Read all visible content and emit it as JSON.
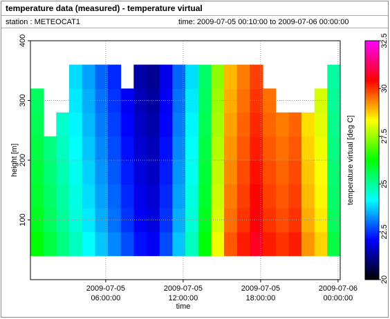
{
  "chart_data": {
    "type": "heatmap",
    "title": "temperature data (measured) - temperature virtual",
    "station": "station : METEOCAT1",
    "time_range": "time: 2009-07-05 00:10:00 to 2009-07-06 00:00:00",
    "xlabel": "time",
    "ylabel": "height [m]",
    "xlim": [
      "2009-07-05 00:10:00",
      "2009-07-06 00:10:00"
    ],
    "xticks": [
      "2009-07-05 06:00:00",
      "2009-07-05 12:00:00",
      "2009-07-05 18:00:00",
      "2009-07-06 00:00:00"
    ],
    "ylim": [
      0,
      400
    ],
    "yticks": [
      100,
      200,
      300,
      400
    ],
    "grid": true,
    "x_bins": [
      "2009-07-05 00:10:00",
      "2009-07-05 01:10:00",
      "2009-07-05 02:10:00",
      "2009-07-05 03:10:00",
      "2009-07-05 04:10:00",
      "2009-07-05 05:10:00",
      "2009-07-05 06:10:00",
      "2009-07-05 07:10:00",
      "2009-07-05 08:10:00",
      "2009-07-05 09:10:00",
      "2009-07-05 10:10:00",
      "2009-07-05 11:10:00",
      "2009-07-05 12:10:00",
      "2009-07-05 13:10:00",
      "2009-07-05 14:10:00",
      "2009-07-05 15:10:00",
      "2009-07-05 16:10:00",
      "2009-07-05 17:10:00",
      "2009-07-05 18:10:00",
      "2009-07-05 19:10:00",
      "2009-07-05 20:10:00",
      "2009-07-05 21:10:00",
      "2009-07-05 22:10:00",
      "2009-07-05 23:10:00",
      "2009-07-06 00:10:00"
    ],
    "y_bins": [
      40,
      80,
      120,
      160,
      200,
      240,
      280,
      320,
      360
    ],
    "values": [
      [
        26.2,
        25.7,
        25.2,
        24.7,
        24.2,
        23.7,
        23.2,
        22.7,
        22.2,
        22.0,
        22.7,
        23.7,
        24.7,
        26.2,
        28.2,
        29.7,
        30.2,
        30.7,
        30.2,
        30.0,
        30.2,
        29.2,
        28.7,
        25.7
      ],
      [
        26.0,
        25.5,
        25.0,
        24.5,
        24.0,
        23.5,
        23.0,
        22.5,
        22.0,
        21.8,
        22.5,
        23.5,
        24.5,
        26.0,
        28.0,
        29.5,
        30.0,
        30.5,
        30.0,
        29.8,
        30.0,
        29.0,
        28.5,
        25.5
      ],
      [
        25.9,
        25.4,
        24.9,
        24.4,
        23.9,
        23.4,
        22.9,
        22.4,
        21.9,
        21.7,
        22.4,
        23.4,
        24.4,
        25.9,
        27.9,
        29.4,
        29.9,
        30.4,
        29.9,
        29.7,
        29.9,
        28.9,
        28.4,
        25.4
      ],
      [
        25.8,
        25.3,
        24.8,
        24.3,
        23.8,
        23.3,
        22.8,
        22.3,
        21.8,
        21.6,
        22.3,
        23.3,
        24.3,
        25.8,
        27.8,
        29.3,
        29.8,
        30.3,
        29.8,
        29.6,
        29.8,
        28.8,
        28.3,
        25.3
      ],
      [
        25.7,
        25.2,
        24.7,
        24.2,
        23.7,
        23.2,
        22.7,
        22.2,
        21.7,
        21.5,
        22.2,
        23.2,
        24.2,
        25.7,
        27.7,
        29.2,
        29.7,
        30.2,
        29.7,
        29.5,
        29.7,
        28.7,
        28.2,
        25.2
      ],
      [
        25.6,
        null,
        24.6,
        24.1,
        23.6,
        23.1,
        22.6,
        22.1,
        21.6,
        21.4,
        22.1,
        23.1,
        24.1,
        25.6,
        27.6,
        29.1,
        29.6,
        30.1,
        29.6,
        29.4,
        29.6,
        28.6,
        28.1,
        25.1
      ],
      [
        25.5,
        null,
        null,
        24.0,
        23.5,
        23.0,
        22.5,
        22.0,
        21.5,
        21.3,
        22.0,
        23.0,
        24.0,
        25.5,
        27.5,
        29.0,
        29.5,
        30.0,
        29.5,
        null,
        null,
        null,
        28.0,
        25.0
      ],
      [
        null,
        null,
        null,
        23.9,
        23.4,
        22.9,
        22.4,
        null,
        21.4,
        21.2,
        21.9,
        22.9,
        23.9,
        25.4,
        27.4,
        28.9,
        29.4,
        29.9,
        null,
        null,
        null,
        null,
        null,
        24.9
      ]
    ],
    "colormap": [
      "#000000",
      "#0000ff",
      "#00ffff",
      "#00ff00",
      "#ffff00",
      "#ff0000",
      "#ff00ff"
    ],
    "colorbar": {
      "label": "temperature virtual [deg C]",
      "lim": [
        20,
        32.5
      ],
      "ticks": [
        20,
        22.5,
        25,
        27.5,
        30,
        32.5
      ]
    }
  }
}
